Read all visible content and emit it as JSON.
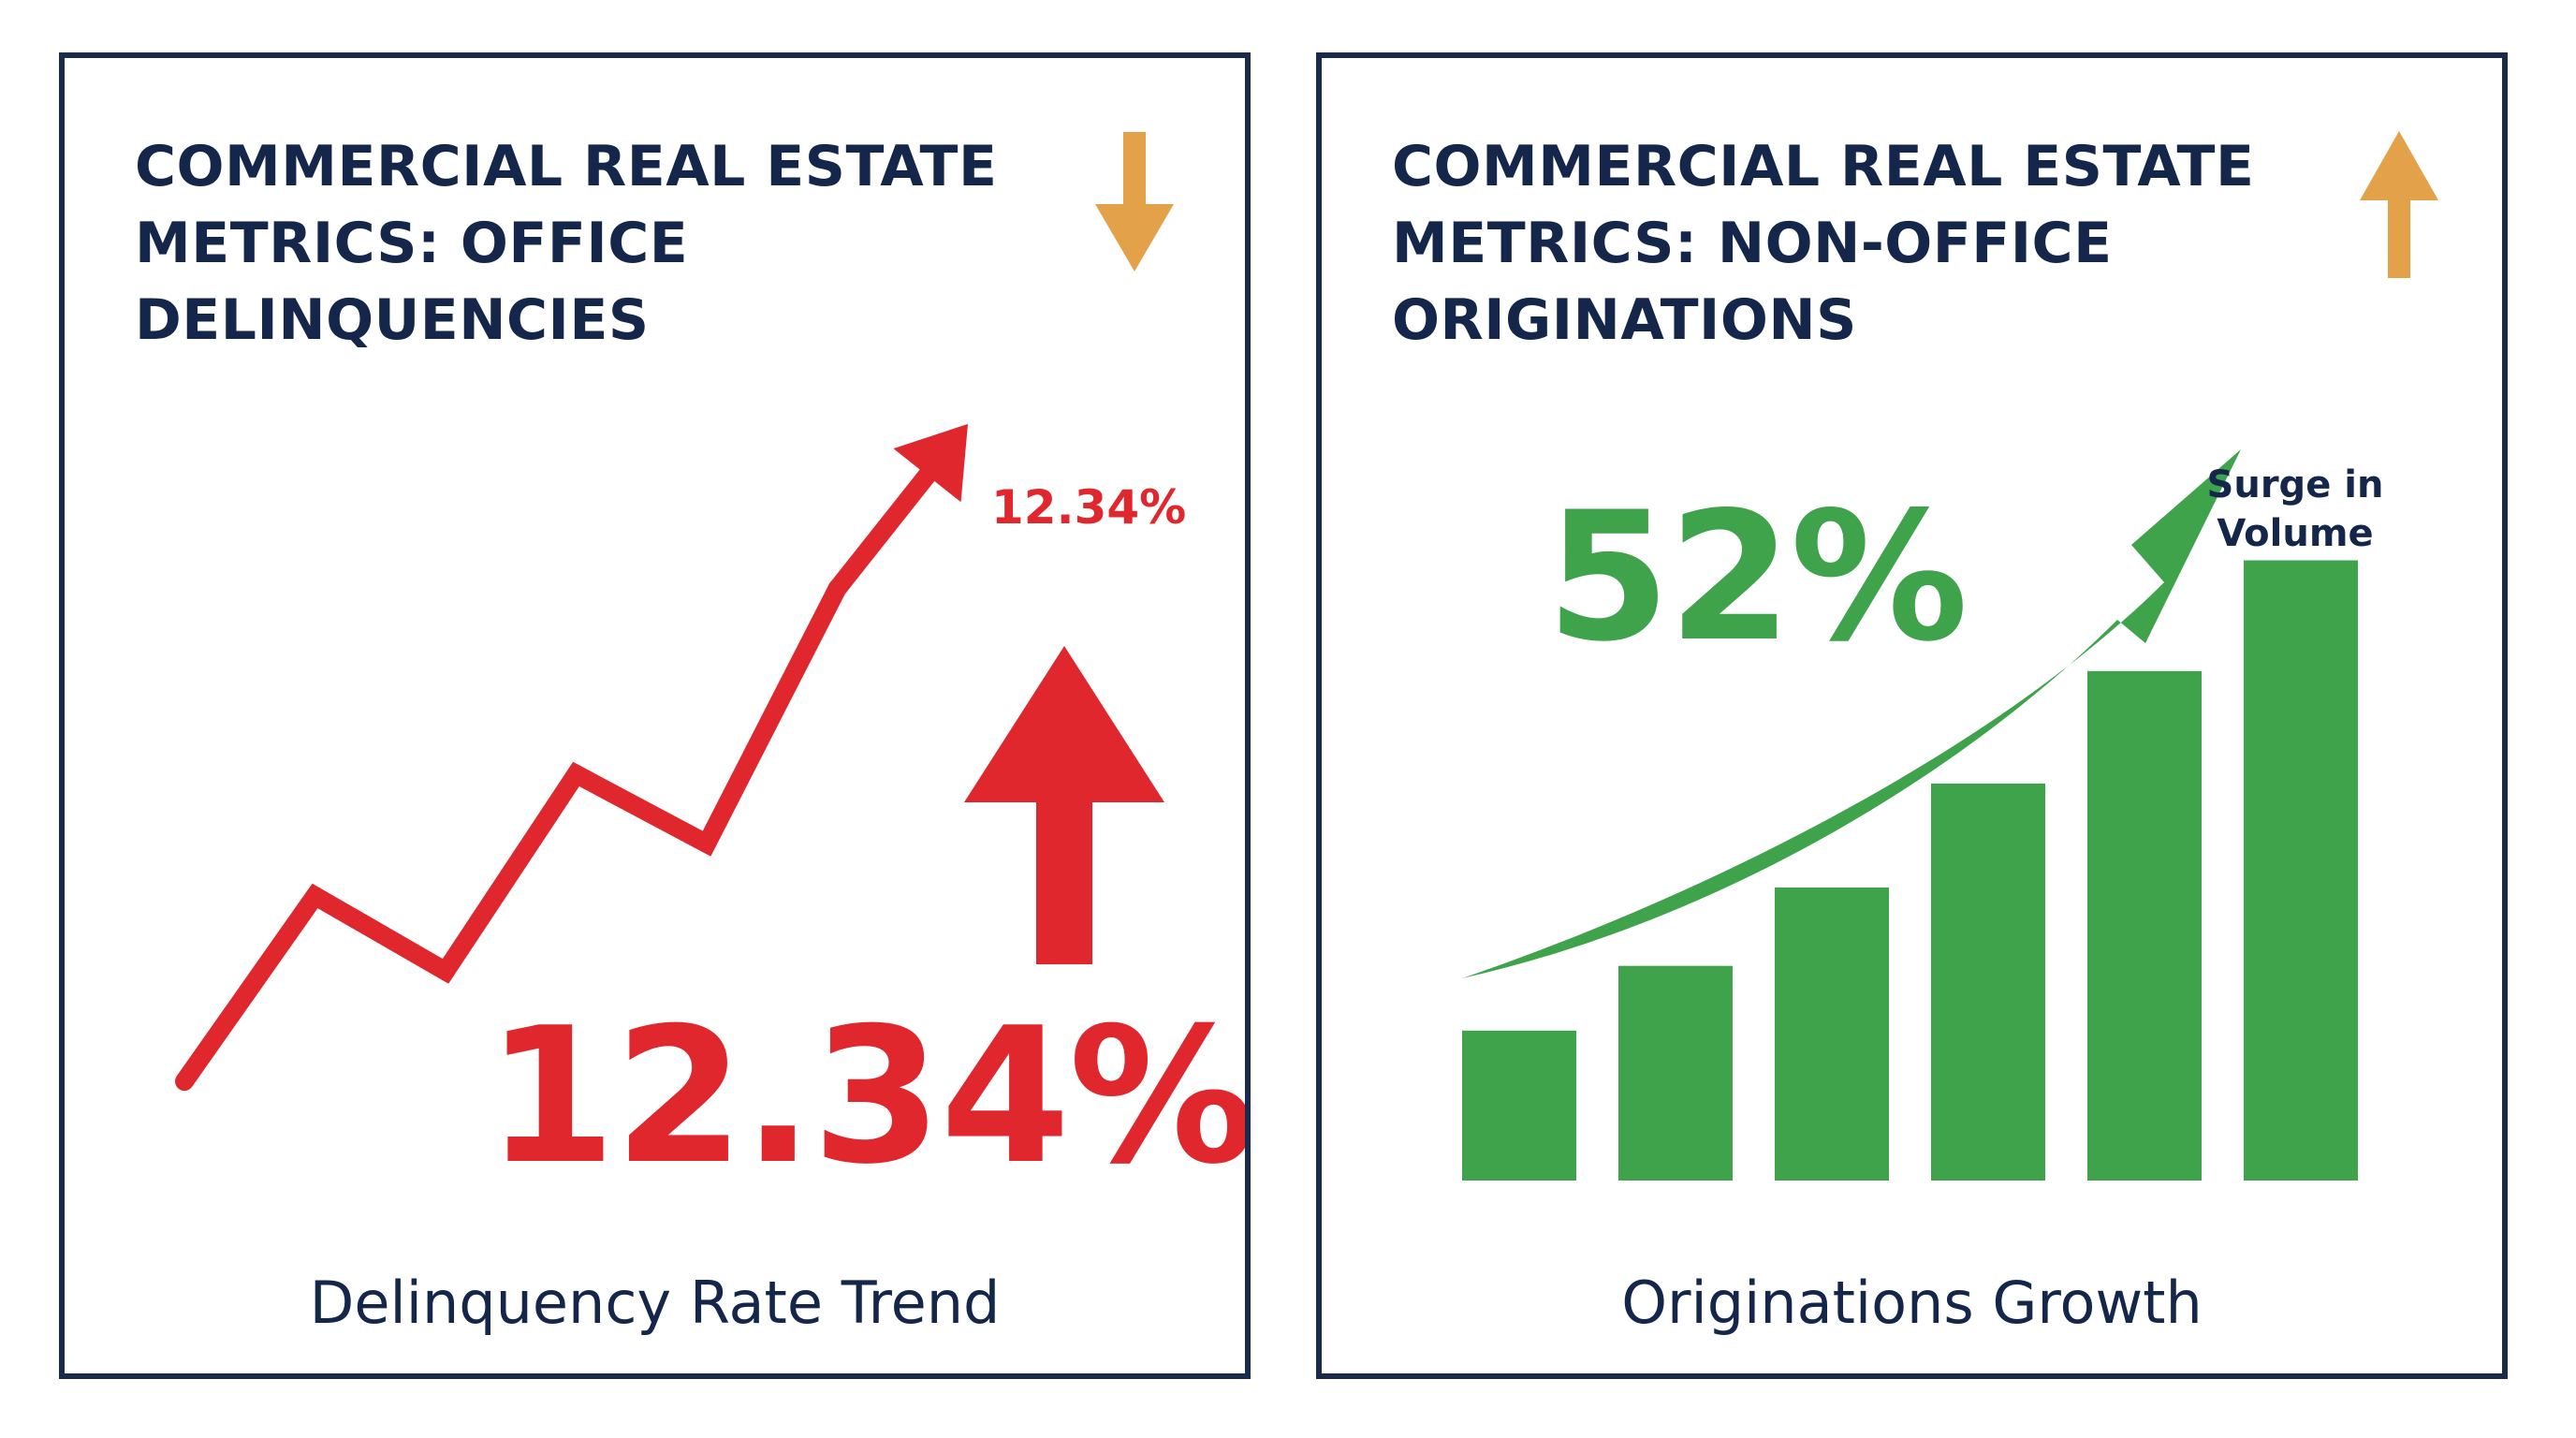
{
  "colors": {
    "border": "#1a2a4a",
    "title_text": "#14264a",
    "delinquency_red": "#e0272e",
    "growth_green": "#3ea34a",
    "indicator_orange": "#e3a24a"
  },
  "panels": [
    {
      "title": "COMMERCIAL REAL ESTATE METRICS: OFFICE DELINQUENCIES",
      "indicator_icon": "arrow-down-icon",
      "value_label_small": "12.34%",
      "value_label_big": "12.34%",
      "trend_icon": "arrow-up-icon",
      "caption": "Delinquency Rate Trend"
    },
    {
      "title": "COMMERCIAL REAL ESTATE METRICS: NON-OFFICE ORIGINATIONS",
      "indicator_icon": "arrow-up-icon",
      "value_label_big": "52%",
      "annotation": "Surge in Volume",
      "trend_icon": "curved-arrow-up-icon",
      "caption": "Originations Growth"
    }
  ],
  "chart_data": [
    {
      "type": "line",
      "title": "COMMERCIAL REAL ESTATE METRICS: OFFICE DELINQUENCIES",
      "xlabel": "Delinquency Rate Trend",
      "ylabel": "",
      "x": [
        0,
        1,
        2,
        3,
        4,
        5,
        6
      ],
      "values": [
        1,
        4.2,
        2.9,
        6.3,
        5.1,
        9.5,
        12.34
      ],
      "ylim": [
        0,
        13
      ],
      "grid": false,
      "annotation": "12.34%"
    },
    {
      "type": "bar",
      "title": "COMMERCIAL REAL ESTATE METRICS: NON-OFFICE ORIGINATIONS",
      "xlabel": "Originations Growth",
      "ylabel": "",
      "categories": [
        "",
        "",
        "",
        "",
        "",
        ""
      ],
      "values": [
        88,
        126,
        172,
        233,
        299,
        364
      ],
      "ylim": [
        0,
        400
      ],
      "grid": false,
      "annotation": "52%"
    }
  ]
}
